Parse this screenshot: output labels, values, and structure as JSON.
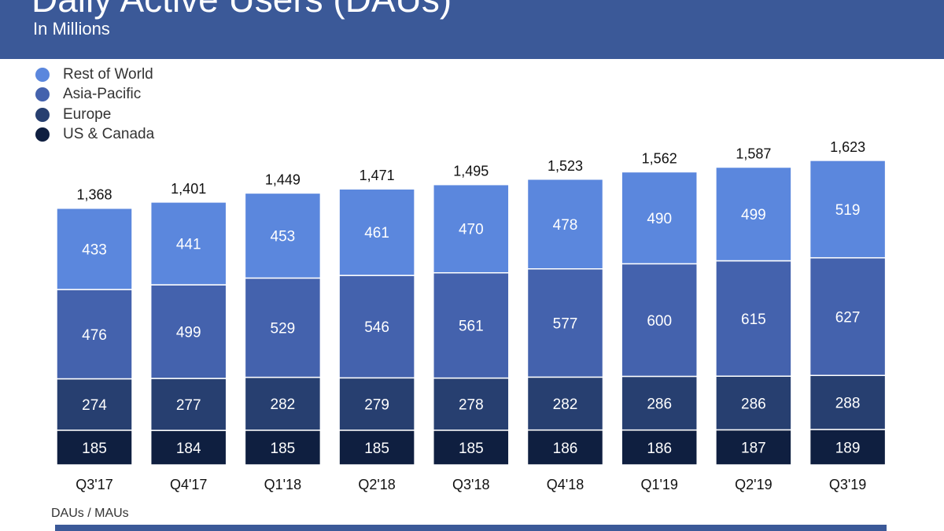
{
  "header": {
    "title": "Daily Active Users (DAUs)",
    "subtitle": "In Millions"
  },
  "footer": {
    "label": "DAUs / MAUs"
  },
  "chart_data": {
    "type": "bar",
    "stacked": true,
    "title": "Daily Active Users (DAUs)",
    "subtitle": "In Millions",
    "categories": [
      "Q3'17",
      "Q4'17",
      "Q1'18",
      "Q2'18",
      "Q3'18",
      "Q4'18",
      "Q1'19",
      "Q2'19",
      "Q3'19"
    ],
    "totals": [
      "1,368",
      "1,401",
      "1,449",
      "1,471",
      "1,495",
      "1,523",
      "1,562",
      "1,587",
      "1,623"
    ],
    "series": [
      {
        "name": "US & Canada",
        "color": "#0f1f40",
        "values": [
          185,
          184,
          185,
          185,
          185,
          186,
          186,
          187,
          189
        ]
      },
      {
        "name": "Europe",
        "color": "#273f70",
        "values": [
          274,
          277,
          282,
          279,
          278,
          282,
          286,
          286,
          288
        ]
      },
      {
        "name": "Asia-Pacific",
        "color": "#4462ad",
        "values": [
          476,
          499,
          529,
          546,
          561,
          577,
          600,
          615,
          627
        ]
      },
      {
        "name": "Rest of World",
        "color": "#5b87dd",
        "values": [
          433,
          441,
          453,
          461,
          470,
          478,
          490,
          499,
          519
        ]
      }
    ],
    "legend": "top-left",
    "grid": false
  }
}
